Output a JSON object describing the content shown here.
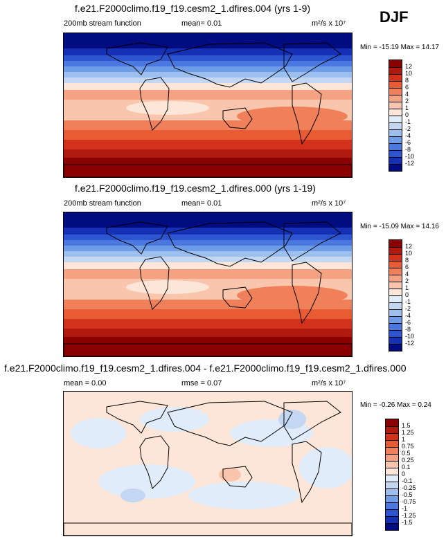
{
  "season": "DJF",
  "units_html": "m²/s x 10⁷",
  "panels": [
    {
      "title": "f.e21.F2000climo.f19_f19.cesm2_1.dfires.004 (yrs 1-9)",
      "left_label": "200mb stream function",
      "mid_label": "mean=  0.01",
      "units": "m²/s x 10⁷",
      "minmax": "Min = -15.19 Max =  14.17",
      "colorbar_labels": [
        "12",
        "10",
        "8",
        "6",
        "4",
        "2",
        "1",
        "0",
        "-1",
        "-2",
        "-4",
        "-6",
        "-8",
        "-10",
        "-12"
      ],
      "kind": "full"
    },
    {
      "title": "f.e21.F2000climo.f19_f19.cesm2_1.dfires.000 (yrs 1-19)",
      "left_label": "200mb stream function",
      "mid_label": "mean=  0.01",
      "units": "m²/s x 10⁷",
      "minmax": "Min = -15.09 Max =  14.16",
      "colorbar_labels": [
        "12",
        "10",
        "8",
        "6",
        "4",
        "2",
        "1",
        "0",
        "-1",
        "-2",
        "-4",
        "-6",
        "-8",
        "-10",
        "-12"
      ],
      "kind": "full"
    },
    {
      "title": "f.e21.F2000climo.f19_f19.cesm2_1.dfires.004 - f.e21.F2000climo.f19_f19.cesm2_1.dfires.000",
      "left_label": "mean =  0.00",
      "mid_label": "rmse =  0.07",
      "units": "m²/s x 10⁷",
      "minmax": "Min = -0.26 Max =  0.24",
      "colorbar_labels": [
        "1.5",
        "1.25",
        "1",
        "0.75",
        "0.5",
        "0.25",
        "0.1",
        "0",
        "-0.1",
        "-0.25",
        "-0.5",
        "-0.75",
        "-1",
        "-1.25",
        "-1.5"
      ],
      "kind": "diff"
    }
  ],
  "colorbar_colors": [
    "#8b0000",
    "#b01a0e",
    "#d2321c",
    "#e85c34",
    "#f0805a",
    "#f5a283",
    "#f9c6ad",
    "#fde6d8",
    "#e0ecfa",
    "#c3d7f3",
    "#9dbfee",
    "#6f9ce6",
    "#4a78de",
    "#2d55cf",
    "#1630b5",
    "#000c80"
  ]
}
